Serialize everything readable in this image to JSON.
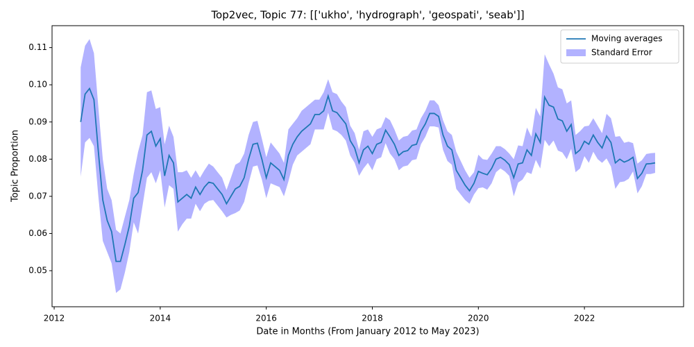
{
  "chart_data": {
    "type": "line",
    "title": "Top2vec, Topic 77: [['ukho', 'hydrograph', 'geospati', 'seab']]",
    "x_label": "Date in Months (From January 2012 to May 2023)",
    "y_label": "Topic Proportion",
    "xlim": [
      2011.96,
      2023.87
    ],
    "ylim": [
      0.0403,
      0.1159
    ],
    "xticks": [
      2012,
      2014,
      2016,
      2018,
      2020,
      2022
    ],
    "yticks": [
      0.05,
      0.06,
      0.07,
      0.08,
      0.09,
      {
        "value": 0.1,
        "label": "0.10"
      },
      0.11
    ],
    "legend": "upper right",
    "x": [
      2012.5,
      2012.583,
      2012.667,
      2012.75,
      2012.833,
      2012.917,
      2013.0,
      2013.083,
      2013.167,
      2013.25,
      2013.333,
      2013.417,
      2013.5,
      2013.583,
      2013.667,
      2013.75,
      2013.833,
      2013.917,
      2014.0,
      2014.083,
      2014.167,
      2014.25,
      2014.333,
      2014.417,
      2014.5,
      2014.583,
      2014.667,
      2014.75,
      2014.833,
      2014.917,
      2015.0,
      2015.083,
      2015.167,
      2015.25,
      2015.333,
      2015.417,
      2015.5,
      2015.583,
      2015.667,
      2015.75,
      2015.833,
      2015.917,
      2016.0,
      2016.083,
      2016.167,
      2016.25,
      2016.333,
      2016.417,
      2016.5,
      2016.583,
      2016.667,
      2016.75,
      2016.833,
      2016.917,
      2017.0,
      2017.083,
      2017.167,
      2017.25,
      2017.333,
      2017.417,
      2017.5,
      2017.583,
      2017.667,
      2017.75,
      2017.833,
      2017.917,
      2018.0,
      2018.083,
      2018.167,
      2018.25,
      2018.333,
      2018.417,
      2018.5,
      2018.583,
      2018.667,
      2018.75,
      2018.833,
      2018.917,
      2019.0,
      2019.083,
      2019.167,
      2019.25,
      2019.333,
      2019.417,
      2019.5,
      2019.583,
      2019.667,
      2019.75,
      2019.833,
      2019.917,
      2020.0,
      2020.083,
      2020.167,
      2020.25,
      2020.333,
      2020.417,
      2020.5,
      2020.583,
      2020.667,
      2020.75,
      2020.833,
      2020.917,
      2021.0,
      2021.083,
      2021.167,
      2021.25,
      2021.333,
      2021.417,
      2021.5,
      2021.583,
      2021.667,
      2021.75,
      2021.833,
      2021.917,
      2022.0,
      2022.083,
      2022.167,
      2022.25,
      2022.333,
      2022.417,
      2022.5,
      2022.583,
      2022.667,
      2022.75,
      2022.833,
      2022.917,
      2023.0,
      2023.083,
      2023.167,
      2023.25,
      2023.333
    ],
    "series": [
      {
        "name": "Moving averages",
        "color": "#1f77b4",
        "values": [
          0.09,
          0.0975,
          0.099,
          0.096,
          0.082,
          0.069,
          0.0635,
          0.0605,
          0.0525,
          0.0525,
          0.057,
          0.062,
          0.0695,
          0.071,
          0.077,
          0.0865,
          0.0875,
          0.0835,
          0.0855,
          0.0755,
          0.081,
          0.079,
          0.0685,
          0.0695,
          0.0705,
          0.0695,
          0.0725,
          0.0705,
          0.0725,
          0.0738,
          0.0735,
          0.072,
          0.0705,
          0.068,
          0.07,
          0.072,
          0.0727,
          0.075,
          0.08,
          0.084,
          0.0843,
          0.08,
          0.075,
          0.079,
          0.078,
          0.077,
          0.0745,
          0.081,
          0.084,
          0.086,
          0.0875,
          0.0885,
          0.0895,
          0.092,
          0.092,
          0.093,
          0.097,
          0.093,
          0.0925,
          0.091,
          0.0895,
          0.085,
          0.083,
          0.079,
          0.0825,
          0.0835,
          0.0815,
          0.084,
          0.0845,
          0.0878,
          0.086,
          0.084,
          0.081,
          0.082,
          0.0823,
          0.0837,
          0.084,
          0.0875,
          0.0895,
          0.0923,
          0.0923,
          0.0915,
          0.0865,
          0.0835,
          0.0825,
          0.077,
          0.075,
          0.073,
          0.0715,
          0.0735,
          0.0767,
          0.0762,
          0.0758,
          0.0775,
          0.08,
          0.0805,
          0.0797,
          0.0785,
          0.075,
          0.0787,
          0.079,
          0.0825,
          0.081,
          0.0868,
          0.0845,
          0.0967,
          0.0945,
          0.094,
          0.0908,
          0.0903,
          0.0875,
          0.0893,
          0.0815,
          0.0825,
          0.0848,
          0.084,
          0.0865,
          0.0845,
          0.083,
          0.0862,
          0.0845,
          0.079,
          0.08,
          0.0792,
          0.0797,
          0.0805,
          0.0748,
          0.0762,
          0.0787,
          0.0788,
          0.079
        ]
      }
    ],
    "error_band": {
      "name": "Standard Error",
      "color": "#0000ff",
      "values": [
        0.0147,
        0.013,
        0.0133,
        0.0125,
        0.012,
        0.011,
        0.0085,
        0.0085,
        0.0085,
        0.0075,
        0.0075,
        0.007,
        0.0065,
        0.011,
        0.0095,
        0.0115,
        0.011,
        0.01,
        0.0085,
        0.0085,
        0.008,
        0.007,
        0.008,
        0.007,
        0.0065,
        0.0055,
        0.0045,
        0.0045,
        0.0045,
        0.005,
        0.0045,
        0.0045,
        0.0045,
        0.0037,
        0.005,
        0.0065,
        0.0065,
        0.0065,
        0.0065,
        0.006,
        0.006,
        0.0055,
        0.0055,
        0.0055,
        0.005,
        0.0045,
        0.0045,
        0.007,
        0.0055,
        0.005,
        0.0055,
        0.0055,
        0.0055,
        0.004,
        0.004,
        0.005,
        0.0045,
        0.005,
        0.005,
        0.0045,
        0.0045,
        0.004,
        0.004,
        0.0035,
        0.005,
        0.0045,
        0.0045,
        0.004,
        0.004,
        0.0035,
        0.0045,
        0.004,
        0.004,
        0.004,
        0.004,
        0.004,
        0.004,
        0.0035,
        0.0035,
        0.0035,
        0.0035,
        0.003,
        0.004,
        0.004,
        0.004,
        0.005,
        0.0045,
        0.004,
        0.0035,
        0.003,
        0.0045,
        0.0038,
        0.004,
        0.004,
        0.0035,
        0.003,
        0.003,
        0.003,
        0.005,
        0.005,
        0.0045,
        0.006,
        0.005,
        0.007,
        0.007,
        0.0115,
        0.011,
        0.009,
        0.0085,
        0.0085,
        0.0075,
        0.0065,
        0.005,
        0.005,
        0.004,
        0.005,
        0.0045,
        0.0045,
        0.004,
        0.006,
        0.0065,
        0.007,
        0.0062,
        0.0052,
        0.005,
        0.0038,
        0.004,
        0.0035,
        0.0027,
        0.0028,
        0.0027
      ]
    }
  }
}
